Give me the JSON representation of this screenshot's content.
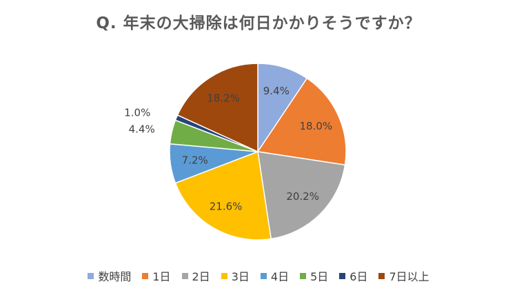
{
  "chart_data": {
    "type": "pie",
    "title": "Q. 年末の大掃除は何日かかりそうですか？",
    "categories": [
      "数時間",
      "1日",
      "2日",
      "3日",
      "4日",
      "5日",
      "6日",
      "7日以上"
    ],
    "values": [
      9.4,
      18.0,
      20.2,
      21.6,
      7.2,
      4.4,
      1.0,
      18.2
    ],
    "value_labels": [
      "9.4%",
      "18.0%",
      "20.2%",
      "21.6%",
      "7.2%",
      "4.4%",
      "1.0%",
      "18.2%"
    ],
    "colors": [
      "#8FAADC",
      "#ED7D31",
      "#A5A5A5",
      "#FFC000",
      "#5B9BD5",
      "#70AD47",
      "#264478",
      "#9E480E"
    ],
    "legend_position": "bottom",
    "start_angle_deg": 0,
    "direction": "clockwise"
  }
}
